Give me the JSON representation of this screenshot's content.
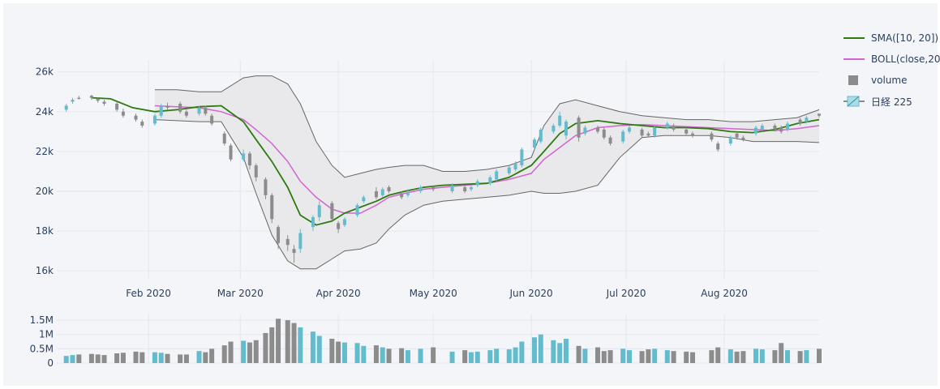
{
  "colors": {
    "up": "#62bccd",
    "down": "#8c8c8c",
    "sma": "#2d7a10",
    "boll": "#d264d2",
    "band_fill": "#e6e6e9",
    "band_line": "#666666",
    "grid": "#e3e6ee",
    "axis_text": "#2a3f5f",
    "plot_bg": "#f4f5f8"
  },
  "legend": {
    "sma": "SMA([10, 20])",
    "boll": "BOLL(close,20)",
    "volume": "volume",
    "nikkei": "日経 225"
  },
  "chart_data": [
    {
      "type": "candlestick",
      "title": "",
      "ylim": [
        15600,
        26600
      ],
      "ytick_values": [
        16000,
        18000,
        20000,
        22000,
        24000,
        26000
      ],
      "ytick_labels": [
        "16k",
        "18k",
        "20k",
        "22k",
        "24k",
        "26k"
      ],
      "xtick_labels": [
        "Feb 2020",
        "Mar 2020",
        "Apr 2020",
        "May 2020",
        "Jun 2020",
        "Jul 2020",
        "Aug 2020"
      ],
      "xtick_dates": [
        "2020-02-01",
        "2020-03-01",
        "2020-04-01",
        "2020-05-01",
        "2020-06-01",
        "2020-07-01",
        "2020-08-01"
      ],
      "xlim": [
        "2020-01-03",
        "2020-08-31"
      ],
      "grid": true,
      "legend_placement": "right",
      "series": [
        {
          "name": "日経 225",
          "dates": [
            "2020-01-06",
            "2020-01-08",
            "2020-01-10",
            "2020-01-14",
            "2020-01-16",
            "2020-01-18",
            "2020-01-22",
            "2020-01-24",
            "2020-01-28",
            "2020-01-30",
            "2020-02-03",
            "2020-02-05",
            "2020-02-07",
            "2020-02-11",
            "2020-02-13",
            "2020-02-17",
            "2020-02-19",
            "2020-02-21",
            "2020-02-25",
            "2020-02-27",
            "2020-03-02",
            "2020-03-04",
            "2020-03-06",
            "2020-03-09",
            "2020-03-11",
            "2020-03-13",
            "2020-03-16",
            "2020-03-18",
            "2020-03-20",
            "2020-03-24",
            "2020-03-26",
            "2020-03-30",
            "2020-04-01",
            "2020-04-03",
            "2020-04-07",
            "2020-04-09",
            "2020-04-13",
            "2020-04-15",
            "2020-04-17",
            "2020-04-21",
            "2020-04-23",
            "2020-04-27",
            "2020-05-01",
            "2020-05-07",
            "2020-05-11",
            "2020-05-13",
            "2020-05-15",
            "2020-05-19",
            "2020-05-21",
            "2020-05-25",
            "2020-05-27",
            "2020-05-29",
            "2020-06-02",
            "2020-06-04",
            "2020-06-08",
            "2020-06-10",
            "2020-06-12",
            "2020-06-16",
            "2020-06-18",
            "2020-06-22",
            "2020-06-24",
            "2020-06-26",
            "2020-06-30",
            "2020-07-02",
            "2020-07-06",
            "2020-07-08",
            "2020-07-10",
            "2020-07-14",
            "2020-07-16",
            "2020-07-20",
            "2020-07-22",
            "2020-07-28",
            "2020-07-30",
            "2020-08-03",
            "2020-08-05",
            "2020-08-07",
            "2020-08-11",
            "2020-08-13",
            "2020-08-17",
            "2020-08-19",
            "2020-08-21",
            "2020-08-25",
            "2020-08-27",
            "2020-08-31"
          ],
          "open": [
            24100,
            24500,
            24700,
            24800,
            24650,
            24500,
            24400,
            24000,
            23800,
            23500,
            23400,
            23800,
            24300,
            24400,
            24000,
            23900,
            24200,
            23800,
            22900,
            22300,
            21600,
            21900,
            21300,
            20600,
            19800,
            18200,
            17600,
            17100,
            17100,
            18200,
            18700,
            19400,
            18400,
            18300,
            18800,
            19500,
            20000,
            19800,
            20200,
            19900,
            19800,
            20000,
            20200,
            20000,
            20200,
            20100,
            20300,
            20400,
            20600,
            20900,
            21100,
            21300,
            22200,
            22500,
            23000,
            23300,
            22800,
            23700,
            22900,
            23200,
            23100,
            22700,
            22500,
            23000,
            23100,
            22900,
            22800,
            23200,
            23300,
            23100,
            22900,
            22900,
            22400,
            22400,
            22900,
            22700,
            22900,
            23100,
            23300,
            23200,
            23100,
            23600,
            23500,
            23900
          ],
          "close": [
            24300,
            24600,
            24650,
            24700,
            24550,
            24400,
            24100,
            23800,
            23600,
            23300,
            23800,
            24300,
            24200,
            24000,
            23800,
            24200,
            23900,
            23400,
            22400,
            21600,
            21900,
            21300,
            20700,
            19800,
            18600,
            17400,
            17300,
            16900,
            17900,
            18700,
            19300,
            18600,
            18100,
            18600,
            19300,
            19700,
            19700,
            20100,
            20000,
            19700,
            19900,
            20200,
            20100,
            20300,
            20000,
            20200,
            20500,
            20700,
            21000,
            21200,
            21400,
            22100,
            22600,
            23100,
            23300,
            23800,
            23500,
            22700,
            23200,
            23000,
            22700,
            22400,
            23000,
            23200,
            22800,
            22800,
            23200,
            23400,
            23100,
            22900,
            22800,
            22600,
            22100,
            22700,
            22700,
            22600,
            23200,
            23300,
            23100,
            23000,
            23400,
            23400,
            23700,
            23800
          ],
          "high": [
            24400,
            24700,
            24800,
            24850,
            24700,
            24600,
            24500,
            24150,
            23900,
            23600,
            23900,
            24400,
            24450,
            24500,
            24100,
            24300,
            24300,
            23900,
            23000,
            22400,
            22100,
            22000,
            21400,
            20700,
            19900,
            18300,
            17800,
            17300,
            18100,
            18800,
            19500,
            19500,
            18500,
            18700,
            19400,
            19800,
            20200,
            20200,
            20300,
            20000,
            20100,
            20300,
            20300,
            20400,
            20300,
            20300,
            20600,
            20800,
            21100,
            21300,
            21500,
            22200,
            22700,
            23200,
            23400,
            24000,
            23600,
            23800,
            23300,
            23300,
            23200,
            22800,
            23100,
            23300,
            23200,
            23000,
            23300,
            23500,
            23400,
            23200,
            23000,
            23000,
            22500,
            22800,
            23000,
            22800,
            23300,
            23400,
            23400,
            23300,
            23500,
            23700,
            23800,
            23900
          ],
          "low": [
            24000,
            24400,
            24600,
            24600,
            24450,
            24300,
            24000,
            23700,
            23500,
            23200,
            23300,
            23700,
            24100,
            23900,
            23700,
            23800,
            23800,
            23300,
            22300,
            21500,
            21500,
            21100,
            20500,
            19600,
            18400,
            17100,
            17000,
            16400,
            16900,
            18000,
            18500,
            18500,
            17900,
            18200,
            18700,
            19400,
            19600,
            19700,
            19900,
            19600,
            19700,
            19900,
            20000,
            19900,
            19900,
            20000,
            20200,
            20300,
            20500,
            20800,
            21000,
            21200,
            22100,
            22400,
            22900,
            23200,
            22600,
            22500,
            22800,
            22900,
            22600,
            22300,
            22400,
            22900,
            22700,
            22700,
            22700,
            23100,
            23000,
            22800,
            22700,
            22500,
            22000,
            22300,
            22600,
            22500,
            22800,
            23000,
            23000,
            22900,
            23000,
            23300,
            23400,
            23700
          ],
          "volume": [
            0.25,
            0.28,
            0.3,
            0.32,
            0.3,
            0.28,
            0.34,
            0.36,
            0.4,
            0.38,
            0.38,
            0.36,
            0.32,
            0.3,
            0.3,
            0.42,
            0.38,
            0.5,
            0.62,
            0.75,
            0.78,
            0.72,
            0.8,
            1.05,
            1.25,
            1.55,
            1.5,
            1.4,
            1.25,
            1.1,
            0.95,
            0.85,
            0.75,
            0.72,
            0.7,
            0.6,
            0.62,
            0.55,
            0.5,
            0.52,
            0.45,
            0.5,
            0.55,
            0.4,
            0.45,
            0.38,
            0.4,
            0.45,
            0.5,
            0.48,
            0.55,
            0.75,
            0.9,
            1.0,
            0.8,
            0.7,
            0.85,
            0.6,
            0.5,
            0.55,
            0.42,
            0.45,
            0.5,
            0.45,
            0.42,
            0.48,
            0.5,
            0.45,
            0.42,
            0.4,
            0.38,
            0.45,
            0.55,
            0.48,
            0.4,
            0.42,
            0.5,
            0.48,
            0.45,
            0.7,
            0.45,
            0.42,
            0.45,
            0.5
          ]
        },
        {
          "name": "SMA([10, 20])",
          "dates": [
            "2020-01-14",
            "2020-01-20",
            "2020-01-27",
            "2020-02-03",
            "2020-02-10",
            "2020-02-17",
            "2020-02-24",
            "2020-03-02",
            "2020-03-06",
            "2020-03-11",
            "2020-03-16",
            "2020-03-20",
            "2020-03-25",
            "2020-03-30",
            "2020-04-03",
            "2020-04-08",
            "2020-04-13",
            "2020-04-17",
            "2020-04-22",
            "2020-04-28",
            "2020-05-04",
            "2020-05-11",
            "2020-05-18",
            "2020-05-25",
            "2020-06-01",
            "2020-06-05",
            "2020-06-10",
            "2020-06-15",
            "2020-06-22",
            "2020-06-29",
            "2020-07-06",
            "2020-07-13",
            "2020-07-20",
            "2020-07-27",
            "2020-08-03",
            "2020-08-10",
            "2020-08-17",
            "2020-08-24",
            "2020-08-31"
          ],
          "values": [
            24700,
            24650,
            24200,
            24000,
            24100,
            24250,
            24300,
            23500,
            22600,
            21500,
            20200,
            18800,
            18300,
            18500,
            18900,
            19200,
            19500,
            19800,
            20000,
            20200,
            20300,
            20350,
            20400,
            20700,
            21300,
            22000,
            22900,
            23400,
            23550,
            23400,
            23300,
            23200,
            23200,
            23150,
            23000,
            22950,
            23100,
            23400,
            23600
          ]
        },
        {
          "name": "BOLL(close,20)",
          "dates": [
            "2020-02-03",
            "2020-02-10",
            "2020-02-17",
            "2020-02-24",
            "2020-03-02",
            "2020-03-06",
            "2020-03-11",
            "2020-03-16",
            "2020-03-20",
            "2020-03-25",
            "2020-03-30",
            "2020-04-03",
            "2020-04-08",
            "2020-04-13",
            "2020-04-17",
            "2020-04-22",
            "2020-04-28",
            "2020-05-04",
            "2020-05-11",
            "2020-05-18",
            "2020-05-25",
            "2020-06-01",
            "2020-06-05",
            "2020-06-10",
            "2020-06-15",
            "2020-06-22",
            "2020-06-29",
            "2020-07-06",
            "2020-07-13",
            "2020-07-20",
            "2020-07-27",
            "2020-08-03",
            "2020-08-10",
            "2020-08-17",
            "2020-08-24",
            "2020-08-31"
          ],
          "mid": [
            24300,
            24250,
            24200,
            24000,
            23600,
            23100,
            22400,
            21500,
            20500,
            19700,
            19100,
            18900,
            18900,
            19300,
            19700,
            19900,
            20100,
            20200,
            20300,
            20400,
            20600,
            20900,
            21600,
            22200,
            22800,
            23200,
            23300,
            23350,
            23300,
            23250,
            23200,
            23150,
            23100,
            23050,
            23150,
            23300
          ],
          "upper": [
            25100,
            25100,
            25000,
            25000,
            25700,
            25800,
            25800,
            25400,
            24400,
            22500,
            21300,
            20700,
            20900,
            21100,
            21200,
            21300,
            21300,
            21000,
            21000,
            21100,
            21300,
            21700,
            23300,
            24400,
            24600,
            24300,
            24000,
            23800,
            23700,
            23600,
            23600,
            23500,
            23500,
            23600,
            23700,
            24100
          ],
          "lower": [
            23600,
            23550,
            23500,
            23500,
            21700,
            19900,
            17800,
            16500,
            16100,
            16100,
            16600,
            17000,
            17100,
            17400,
            18100,
            18800,
            19300,
            19500,
            19600,
            19700,
            19800,
            20000,
            19900,
            19900,
            20000,
            20300,
            21700,
            22700,
            22800,
            22800,
            22800,
            22700,
            22500,
            22500,
            22500,
            22450
          ]
        }
      ]
    },
    {
      "type": "bar",
      "title": "",
      "name": "volume",
      "ylim": [
        0,
        1.7
      ],
      "ytick_values": [
        0,
        0.5,
        1,
        1.5
      ],
      "ytick_labels": [
        "0",
        "0.5M",
        "1M",
        "1.5M"
      ]
    }
  ]
}
